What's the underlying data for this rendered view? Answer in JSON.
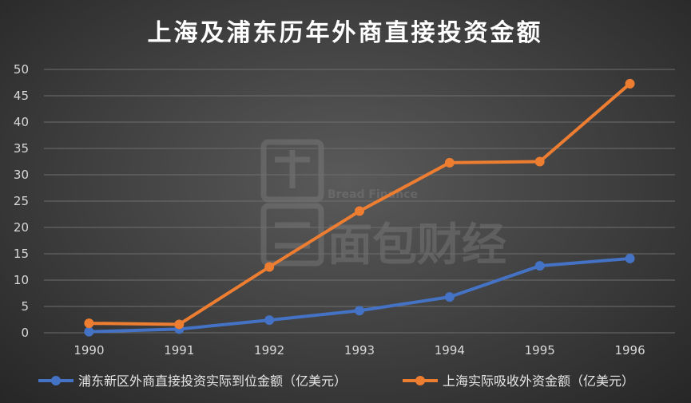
{
  "chart_data": {
    "type": "line",
    "title": "上海及浦东历年外商直接投资金额",
    "categories": [
      "1990",
      "1991",
      "1992",
      "1993",
      "1994",
      "1995",
      "1996"
    ],
    "ylim": [
      0,
      50
    ],
    "yticks": [
      0,
      5,
      10,
      15,
      20,
      25,
      30,
      35,
      40,
      45,
      50
    ],
    "grid": true,
    "legend_position": "bottom",
    "series": [
      {
        "name": "浦东新区外商直接投资实际到位金额（亿美元）",
        "color": "#4472c4",
        "values": [
          0.2,
          0.7,
          2.4,
          4.2,
          6.8,
          12.7,
          14.1
        ]
      },
      {
        "name": "上海实际吸收外资金额（亿美元）",
        "color": "#ed7d31",
        "values": [
          1.8,
          1.6,
          12.5,
          23.1,
          32.3,
          32.5,
          47.3
        ]
      }
    ]
  },
  "watermark": {
    "latin": "Bread Finance",
    "cjk": "面包财经"
  }
}
